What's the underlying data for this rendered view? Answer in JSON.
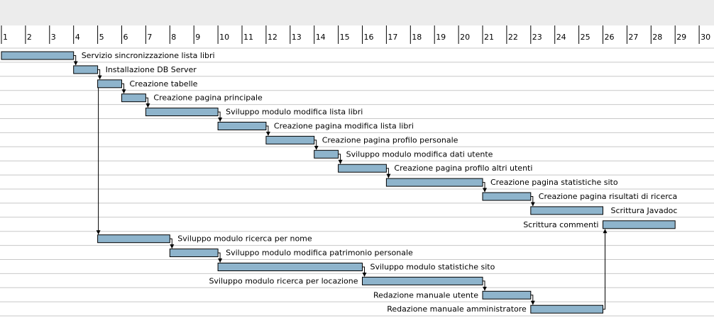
{
  "chart_data": {
    "type": "gantt",
    "x_axis": {
      "ticks": [
        1,
        2,
        3,
        4,
        5,
        6,
        7,
        8,
        9,
        10,
        11,
        12,
        13,
        14,
        15,
        16,
        17,
        18,
        19,
        20,
        21,
        22,
        23,
        24,
        25,
        26,
        27,
        28,
        29,
        30
      ]
    },
    "grid": true,
    "colors": {
      "bar_fill": "#8eb4cc",
      "bar_border": "#000000",
      "header_bg": "#ececec",
      "row_line": "#c8c8c8"
    },
    "tasks": [
      {
        "name": "Servizio sincronizzazione lista libri",
        "start": 1,
        "end": 4,
        "label_side": "right"
      },
      {
        "name": "Installazione DB Server",
        "start": 4,
        "end": 5,
        "label_side": "right"
      },
      {
        "name": "Creazione tabelle",
        "start": 5,
        "end": 6,
        "label_side": "right"
      },
      {
        "name": "Creazione pagina principale",
        "start": 6,
        "end": 7,
        "label_side": "right"
      },
      {
        "name": "Sviluppo modulo  modifica lista libri",
        "start": 7,
        "end": 10,
        "label_side": "right"
      },
      {
        "name": "Creazione  pagina modifica lista libri",
        "start": 10,
        "end": 12,
        "label_side": "right"
      },
      {
        "name": "Creazione  pagina profilo personale",
        "start": 12,
        "end": 14,
        "label_side": "right"
      },
      {
        "name": "Sviluppo modulo  modifica dati utente",
        "start": 14,
        "end": 15,
        "label_side": "right"
      },
      {
        "name": "Creazione  pagina profilo altri utenti",
        "start": 15,
        "end": 17,
        "label_side": "right"
      },
      {
        "name": "Creazione  pagina statistiche sito",
        "start": 17,
        "end": 21,
        "label_side": "right"
      },
      {
        "name": "Creazione  pagina risultati di ricerca",
        "start": 21,
        "end": 23,
        "label_side": "right"
      },
      {
        "name": "Scrittura Javadoc",
        "start": 23,
        "end": 26,
        "label_side": "right"
      },
      {
        "name": "Scrittura commenti",
        "start": 26,
        "end": 29,
        "label_side": "left"
      },
      {
        "name": "Sviluppo modulo ricerca per nome",
        "start": 5,
        "end": 8,
        "label_side": "right"
      },
      {
        "name": "Sviluppo modulo modifica patrimonio personale",
        "start": 8,
        "end": 10,
        "label_side": "right"
      },
      {
        "name": "Sviluppo modulo  statistiche sito",
        "start": 10,
        "end": 16,
        "label_side": "right"
      },
      {
        "name": "Sviluppo modulo  ricerca per locazione",
        "start": 16,
        "end": 21,
        "label_side": "left"
      },
      {
        "name": "Redazione manuale utente",
        "start": 21,
        "end": 23,
        "label_side": "left"
      },
      {
        "name": "Redazione manuale amministratore",
        "start": 23,
        "end": 26,
        "label_side": "left"
      }
    ],
    "dependencies": [
      [
        0,
        1
      ],
      [
        1,
        2
      ],
      [
        2,
        3
      ],
      [
        3,
        4
      ],
      [
        4,
        5
      ],
      [
        5,
        6
      ],
      [
        6,
        7
      ],
      [
        7,
        8
      ],
      [
        8,
        9
      ],
      [
        9,
        10
      ],
      [
        10,
        11
      ],
      [
        2,
        13
      ],
      [
        13,
        14
      ],
      [
        14,
        15
      ],
      [
        15,
        16
      ],
      [
        16,
        17
      ],
      [
        17,
        18
      ],
      [
        18,
        12
      ]
    ]
  }
}
